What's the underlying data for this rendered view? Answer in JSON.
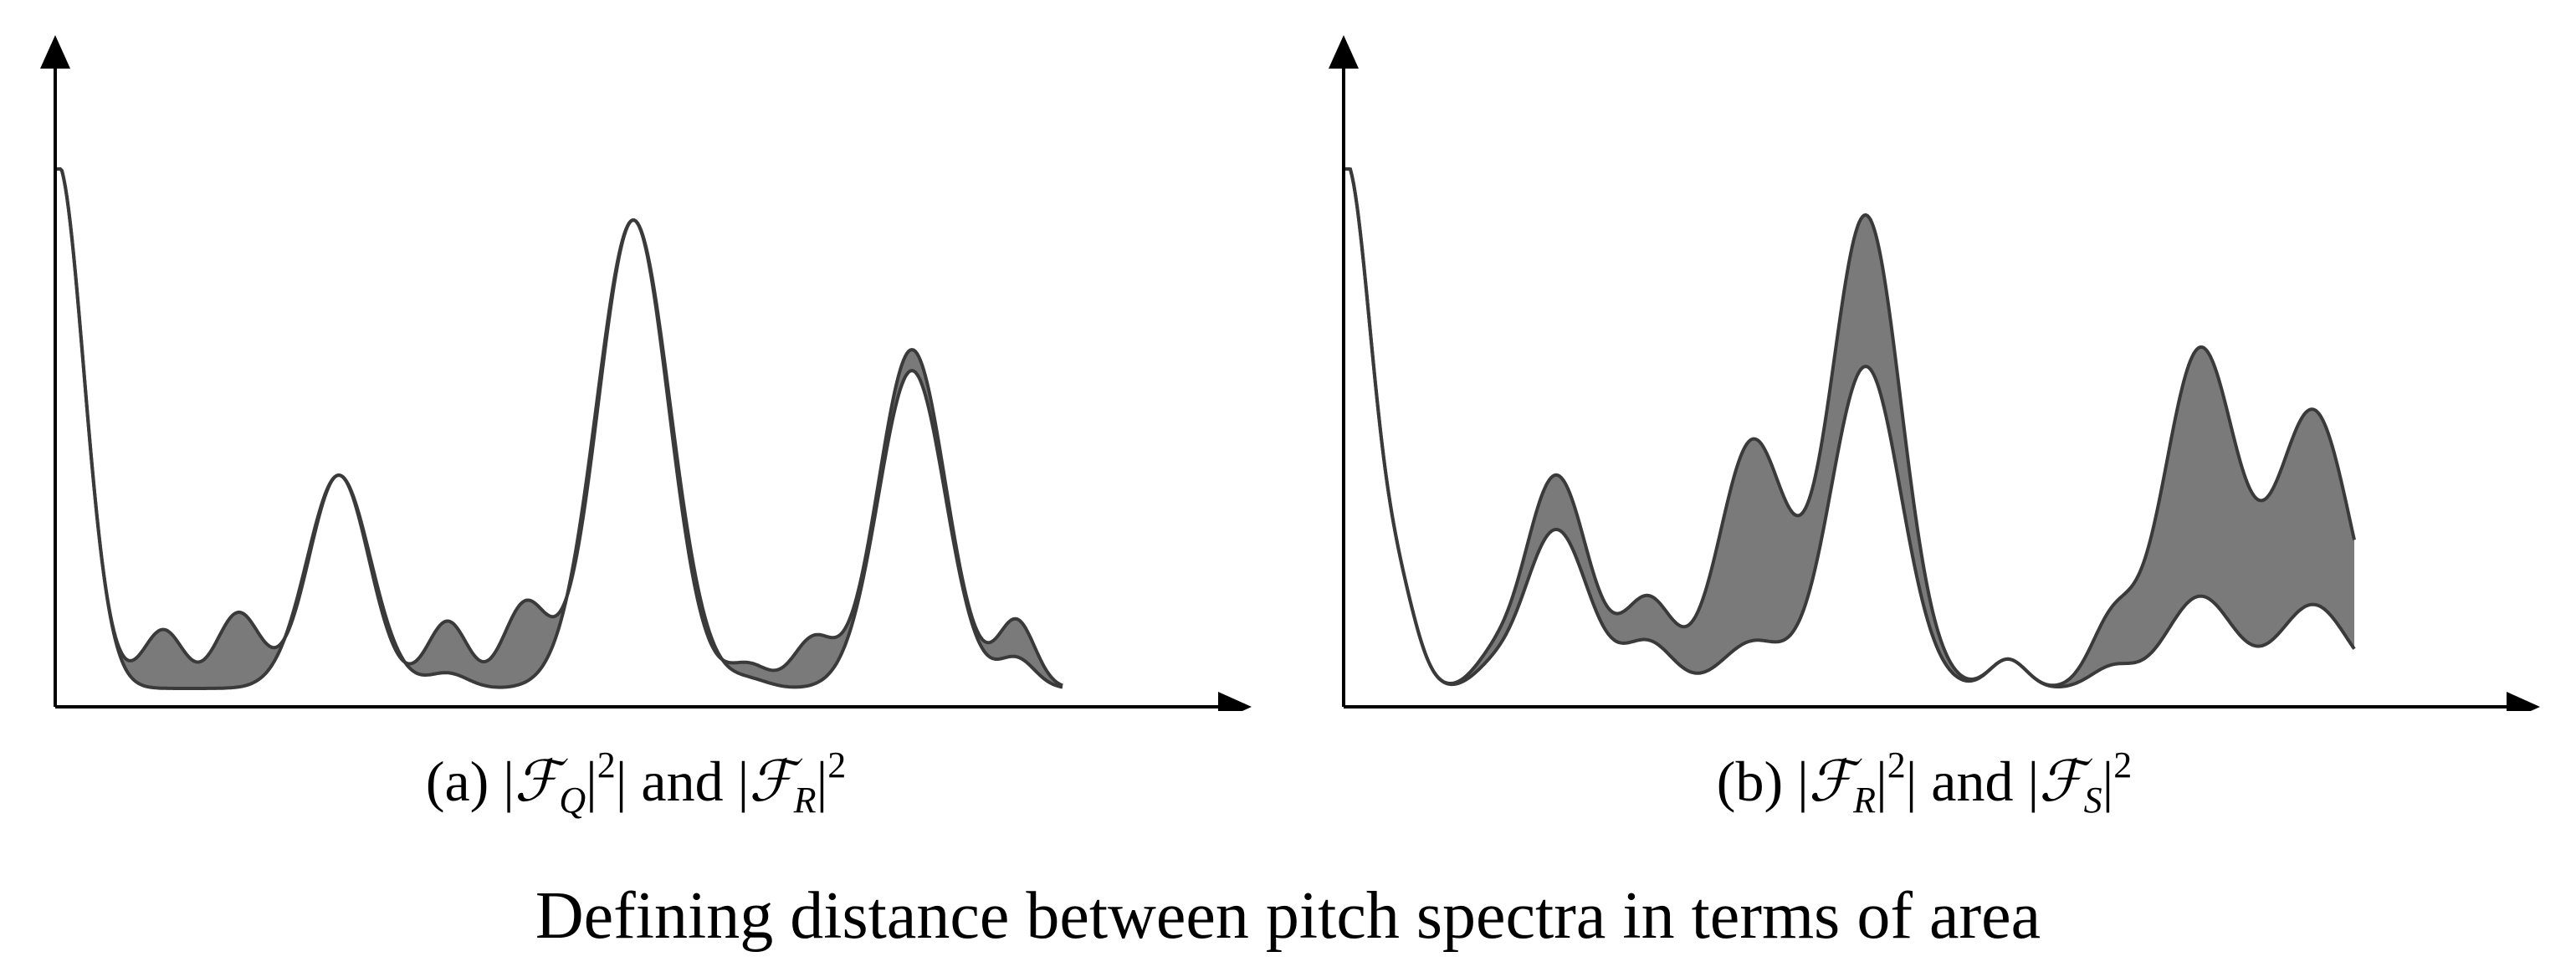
{
  "figure": {
    "title": "Defining distance between pitch spectra in terms of area"
  },
  "panels": [
    {
      "id": "a",
      "caption": {
        "prefix": "(a) |",
        "sym1": "ℱ",
        "sub1": "Q",
        "mid": "| and |",
        "sym2": "ℱ",
        "sub2": "R",
        "end": "|",
        "power": "2"
      },
      "curve1_label": "|ℱQ|²",
      "curve2_label": "|ℱR|²"
    },
    {
      "id": "b",
      "caption": {
        "prefix": "(b) |",
        "sym1": "ℱ",
        "sub1": "R",
        "mid": "| and |",
        "sym2": "ℱ",
        "sub2": "S",
        "end": "|",
        "power": "2"
      },
      "curve1_label": "|ℱR|²",
      "curve2_label": "|ℱS|²"
    }
  ],
  "colors": {
    "fill": "#7a7a7a",
    "curve": "#3a3a3a",
    "axis": "#000000"
  }
}
